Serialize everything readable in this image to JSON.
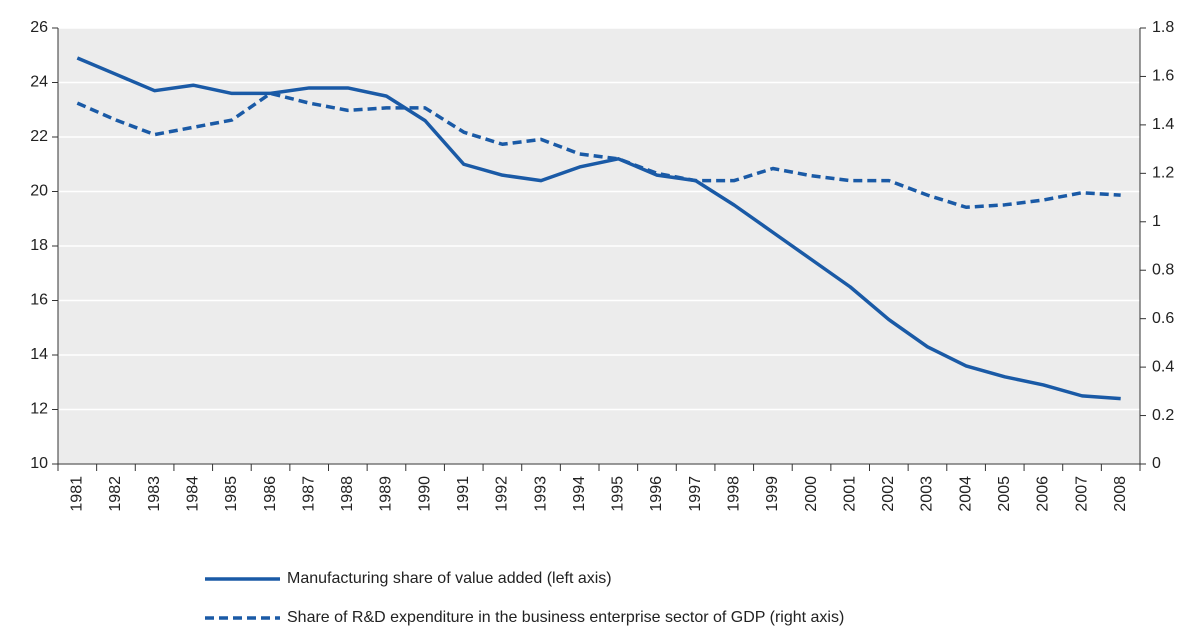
{
  "chart_data": {
    "type": "line",
    "categories": [
      "1981",
      "1982",
      "1983",
      "1984",
      "1985",
      "1986",
      "1987",
      "1988",
      "1989",
      "1990",
      "1991",
      "1992",
      "1993",
      "1994",
      "1995",
      "1996",
      "1997",
      "1998",
      "1999",
      "2000",
      "2001",
      "2002",
      "2003",
      "2004",
      "2005",
      "2006",
      "2007",
      "2008"
    ],
    "series": [
      {
        "name": "Manufacturing share of value added (left axis)",
        "color": "#1a5aa6",
        "line_style": "solid",
        "axis": "y",
        "values": [
          24.9,
          24.3,
          23.7,
          23.9,
          23.6,
          23.6,
          23.8,
          23.8,
          23.5,
          22.6,
          21.0,
          20.6,
          20.4,
          20.9,
          21.2,
          20.6,
          20.4,
          19.5,
          18.5,
          17.5,
          16.5,
          15.3,
          14.3,
          13.6,
          13.2,
          12.9,
          12.5,
          12.4
        ]
      },
      {
        "name": "Share of R&D expenditure in the business enterprise sector of GDP (right axis)",
        "color": "#1a5aa6",
        "line_style": "dashed",
        "axis": "y2",
        "values": [
          1.49,
          1.42,
          1.36,
          1.39,
          1.42,
          1.53,
          1.49,
          1.46,
          1.47,
          1.47,
          1.37,
          1.32,
          1.34,
          1.28,
          1.26,
          1.2,
          1.17,
          1.17,
          1.22,
          1.19,
          1.17,
          1.17,
          1.11,
          1.06,
          1.07,
          1.09,
          1.12,
          1.11
        ]
      }
    ],
    "ylim": [
      10,
      26
    ],
    "yticks": [
      10,
      12,
      14,
      16,
      18,
      20,
      22,
      24,
      26
    ],
    "y2lim": [
      0,
      1.8
    ],
    "y2ticks": [
      0,
      0.2,
      0.4,
      0.6,
      0.8,
      1,
      1.2,
      1.4,
      1.6,
      1.8
    ],
    "grid": true,
    "legend": "bottom",
    "background": "#ececec"
  }
}
